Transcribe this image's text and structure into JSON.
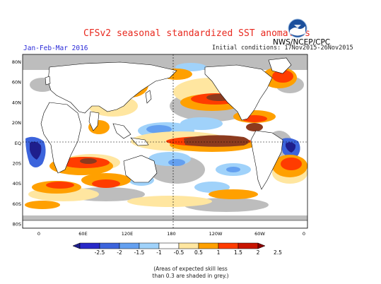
{
  "header": {
    "title": "CFSv2 seasonal standardized SST anomalies",
    "agency": "NWS/NCEP/CPC",
    "season": "Jan-Feb-Mar 2016",
    "initial_conditions": "Initial conditions: 17Nov2015-26Nov2015"
  },
  "map": {
    "lat_ticks": [
      "80N",
      "60N",
      "40N",
      "20N",
      "EQ",
      "20S",
      "40S",
      "60S",
      "80S"
    ],
    "lon_ticks": [
      "0",
      "60E",
      "120E",
      "180",
      "120W",
      "60W",
      "0"
    ],
    "grey_meaning": "low skill"
  },
  "colorbar": {
    "labels": [
      "-2.5",
      "-2",
      "-1.5",
      "-1",
      "-0.5",
      "0.5",
      "1",
      "1.5",
      "2",
      "2.5"
    ],
    "colors": [
      "#1e1e8c",
      "#2828c8",
      "#3c64dc",
      "#64a0f0",
      "#a0d2fa",
      "#ffffff",
      "#ffe6a0",
      "#ffa000",
      "#ff3c00",
      "#c81400",
      "#8c0000"
    ]
  },
  "note": {
    "line1": "(Areas of expected skill less",
    "line2": "than 0.3 are shaded in grey.)"
  },
  "icons": {
    "logo": "noaa-logo-icon"
  }
}
